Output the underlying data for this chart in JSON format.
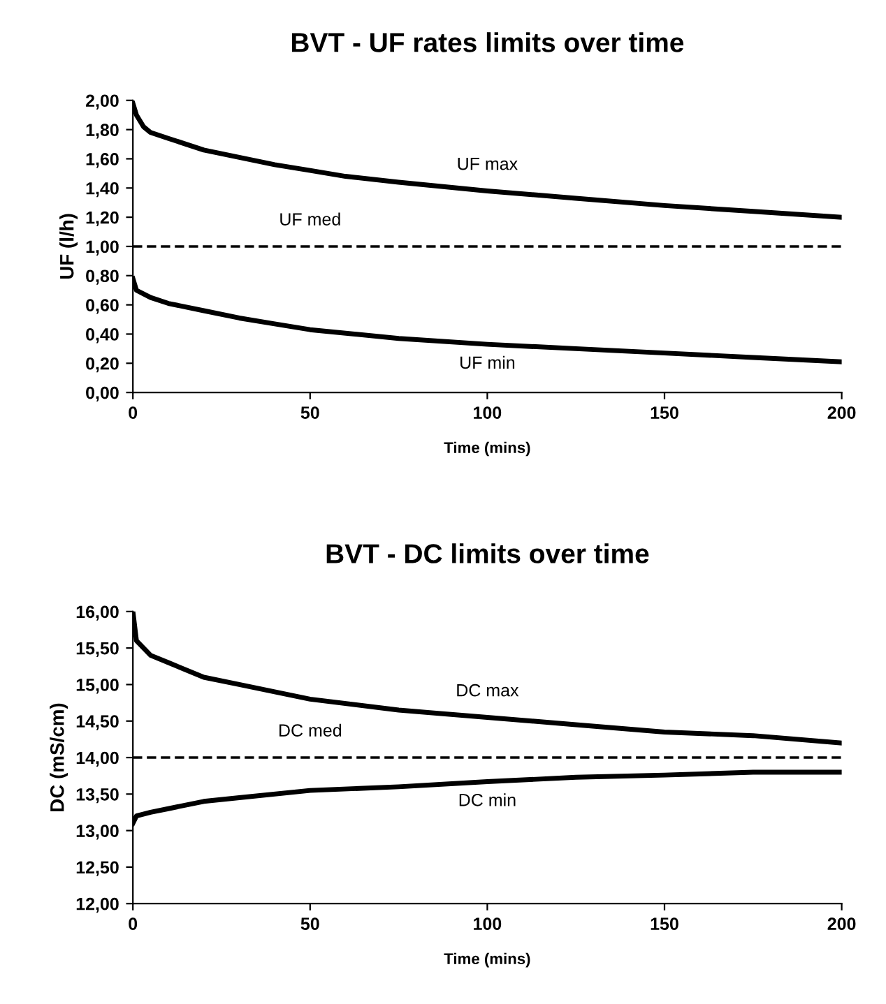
{
  "chart_data": [
    {
      "type": "line",
      "title": "BVT - UF rates limits over time",
      "xlabel": "Time (mins)",
      "ylabel": "UF (l/h)",
      "xlim": [
        0,
        200
      ],
      "xticks": [
        0,
        50,
        100,
        150,
        200
      ],
      "ylim": [
        0,
        2
      ],
      "yticks": [
        {
          "value": 0,
          "label": "0,00"
        },
        {
          "value": 0.2,
          "label": "0,20"
        },
        {
          "value": 0.4,
          "label": "0,40"
        },
        {
          "value": 0.6,
          "label": "0,60"
        },
        {
          "value": 0.8,
          "label": "0,80"
        },
        {
          "value": 1.0,
          "label": "1,00"
        },
        {
          "value": 1.2,
          "label": "1,20"
        },
        {
          "value": 1.4,
          "label": "1,40"
        },
        {
          "value": 1.6,
          "label": "1,60"
        },
        {
          "value": 1.8,
          "label": "1,80"
        },
        {
          "value": 2.0,
          "label": "2,00"
        }
      ],
      "grid": false,
      "legend": false,
      "marker": "none",
      "series": [
        {
          "name": "UF max",
          "color": "#000000",
          "line_style": "solid",
          "x": [
            0,
            1,
            3,
            5,
            10,
            20,
            30,
            40,
            50,
            60,
            75,
            100,
            125,
            150,
            175,
            200
          ],
          "values": [
            1.98,
            1.9,
            1.82,
            1.78,
            1.74,
            1.66,
            1.61,
            1.56,
            1.52,
            1.48,
            1.44,
            1.38,
            1.33,
            1.28,
            1.24,
            1.2
          ]
        },
        {
          "name": "UF med",
          "color": "#000000",
          "line_style": "dashed",
          "x": [
            0,
            200
          ],
          "values": [
            1.0,
            1.0
          ]
        },
        {
          "name": "UF min",
          "color": "#000000",
          "line_style": "solid",
          "x": [
            0,
            1,
            5,
            10,
            20,
            30,
            40,
            50,
            75,
            100,
            125,
            150,
            175,
            200
          ],
          "values": [
            0.78,
            0.7,
            0.65,
            0.61,
            0.56,
            0.51,
            0.47,
            0.43,
            0.37,
            0.33,
            0.3,
            0.27,
            0.24,
            0.21
          ]
        }
      ]
    },
    {
      "type": "line",
      "title": "BVT - DC limits over time",
      "xlabel": "Time (mins)",
      "ylabel": "DC (mS/cm)",
      "xlim": [
        0,
        200
      ],
      "xticks": [
        0,
        50,
        100,
        150,
        200
      ],
      "ylim": [
        12,
        16
      ],
      "yticks": [
        {
          "value": 12,
          "label": "12,00"
        },
        {
          "value": 12.5,
          "label": "12,50"
        },
        {
          "value": 13,
          "label": "13,00"
        },
        {
          "value": 13.5,
          "label": "13,50"
        },
        {
          "value": 14,
          "label": "14,00"
        },
        {
          "value": 14.5,
          "label": "14,50"
        },
        {
          "value": 15,
          "label": "15,00"
        },
        {
          "value": 15.5,
          "label": "15,50"
        },
        {
          "value": 16,
          "label": "16,00"
        }
      ],
      "grid": false,
      "legend": false,
      "marker": "none",
      "series": [
        {
          "name": "DC max",
          "color": "#000000",
          "line_style": "solid",
          "x": [
            0,
            1,
            3,
            5,
            10,
            20,
            30,
            40,
            50,
            75,
            100,
            125,
            150,
            175,
            200
          ],
          "values": [
            16.0,
            15.6,
            15.5,
            15.4,
            15.3,
            15.1,
            15.0,
            14.9,
            14.8,
            14.65,
            14.55,
            14.45,
            14.35,
            14.3,
            14.2
          ]
        },
        {
          "name": "DC med",
          "color": "#000000",
          "line_style": "dashed",
          "x": [
            0,
            200
          ],
          "values": [
            14.0,
            14.0
          ]
        },
        {
          "name": "DC min",
          "color": "#000000",
          "line_style": "solid",
          "x": [
            0,
            1,
            5,
            10,
            20,
            30,
            50,
            75,
            100,
            125,
            150,
            175,
            200
          ],
          "values": [
            13.1,
            13.2,
            13.25,
            13.3,
            13.4,
            13.45,
            13.55,
            13.6,
            13.67,
            13.73,
            13.76,
            13.8,
            13.8
          ]
        }
      ]
    }
  ]
}
